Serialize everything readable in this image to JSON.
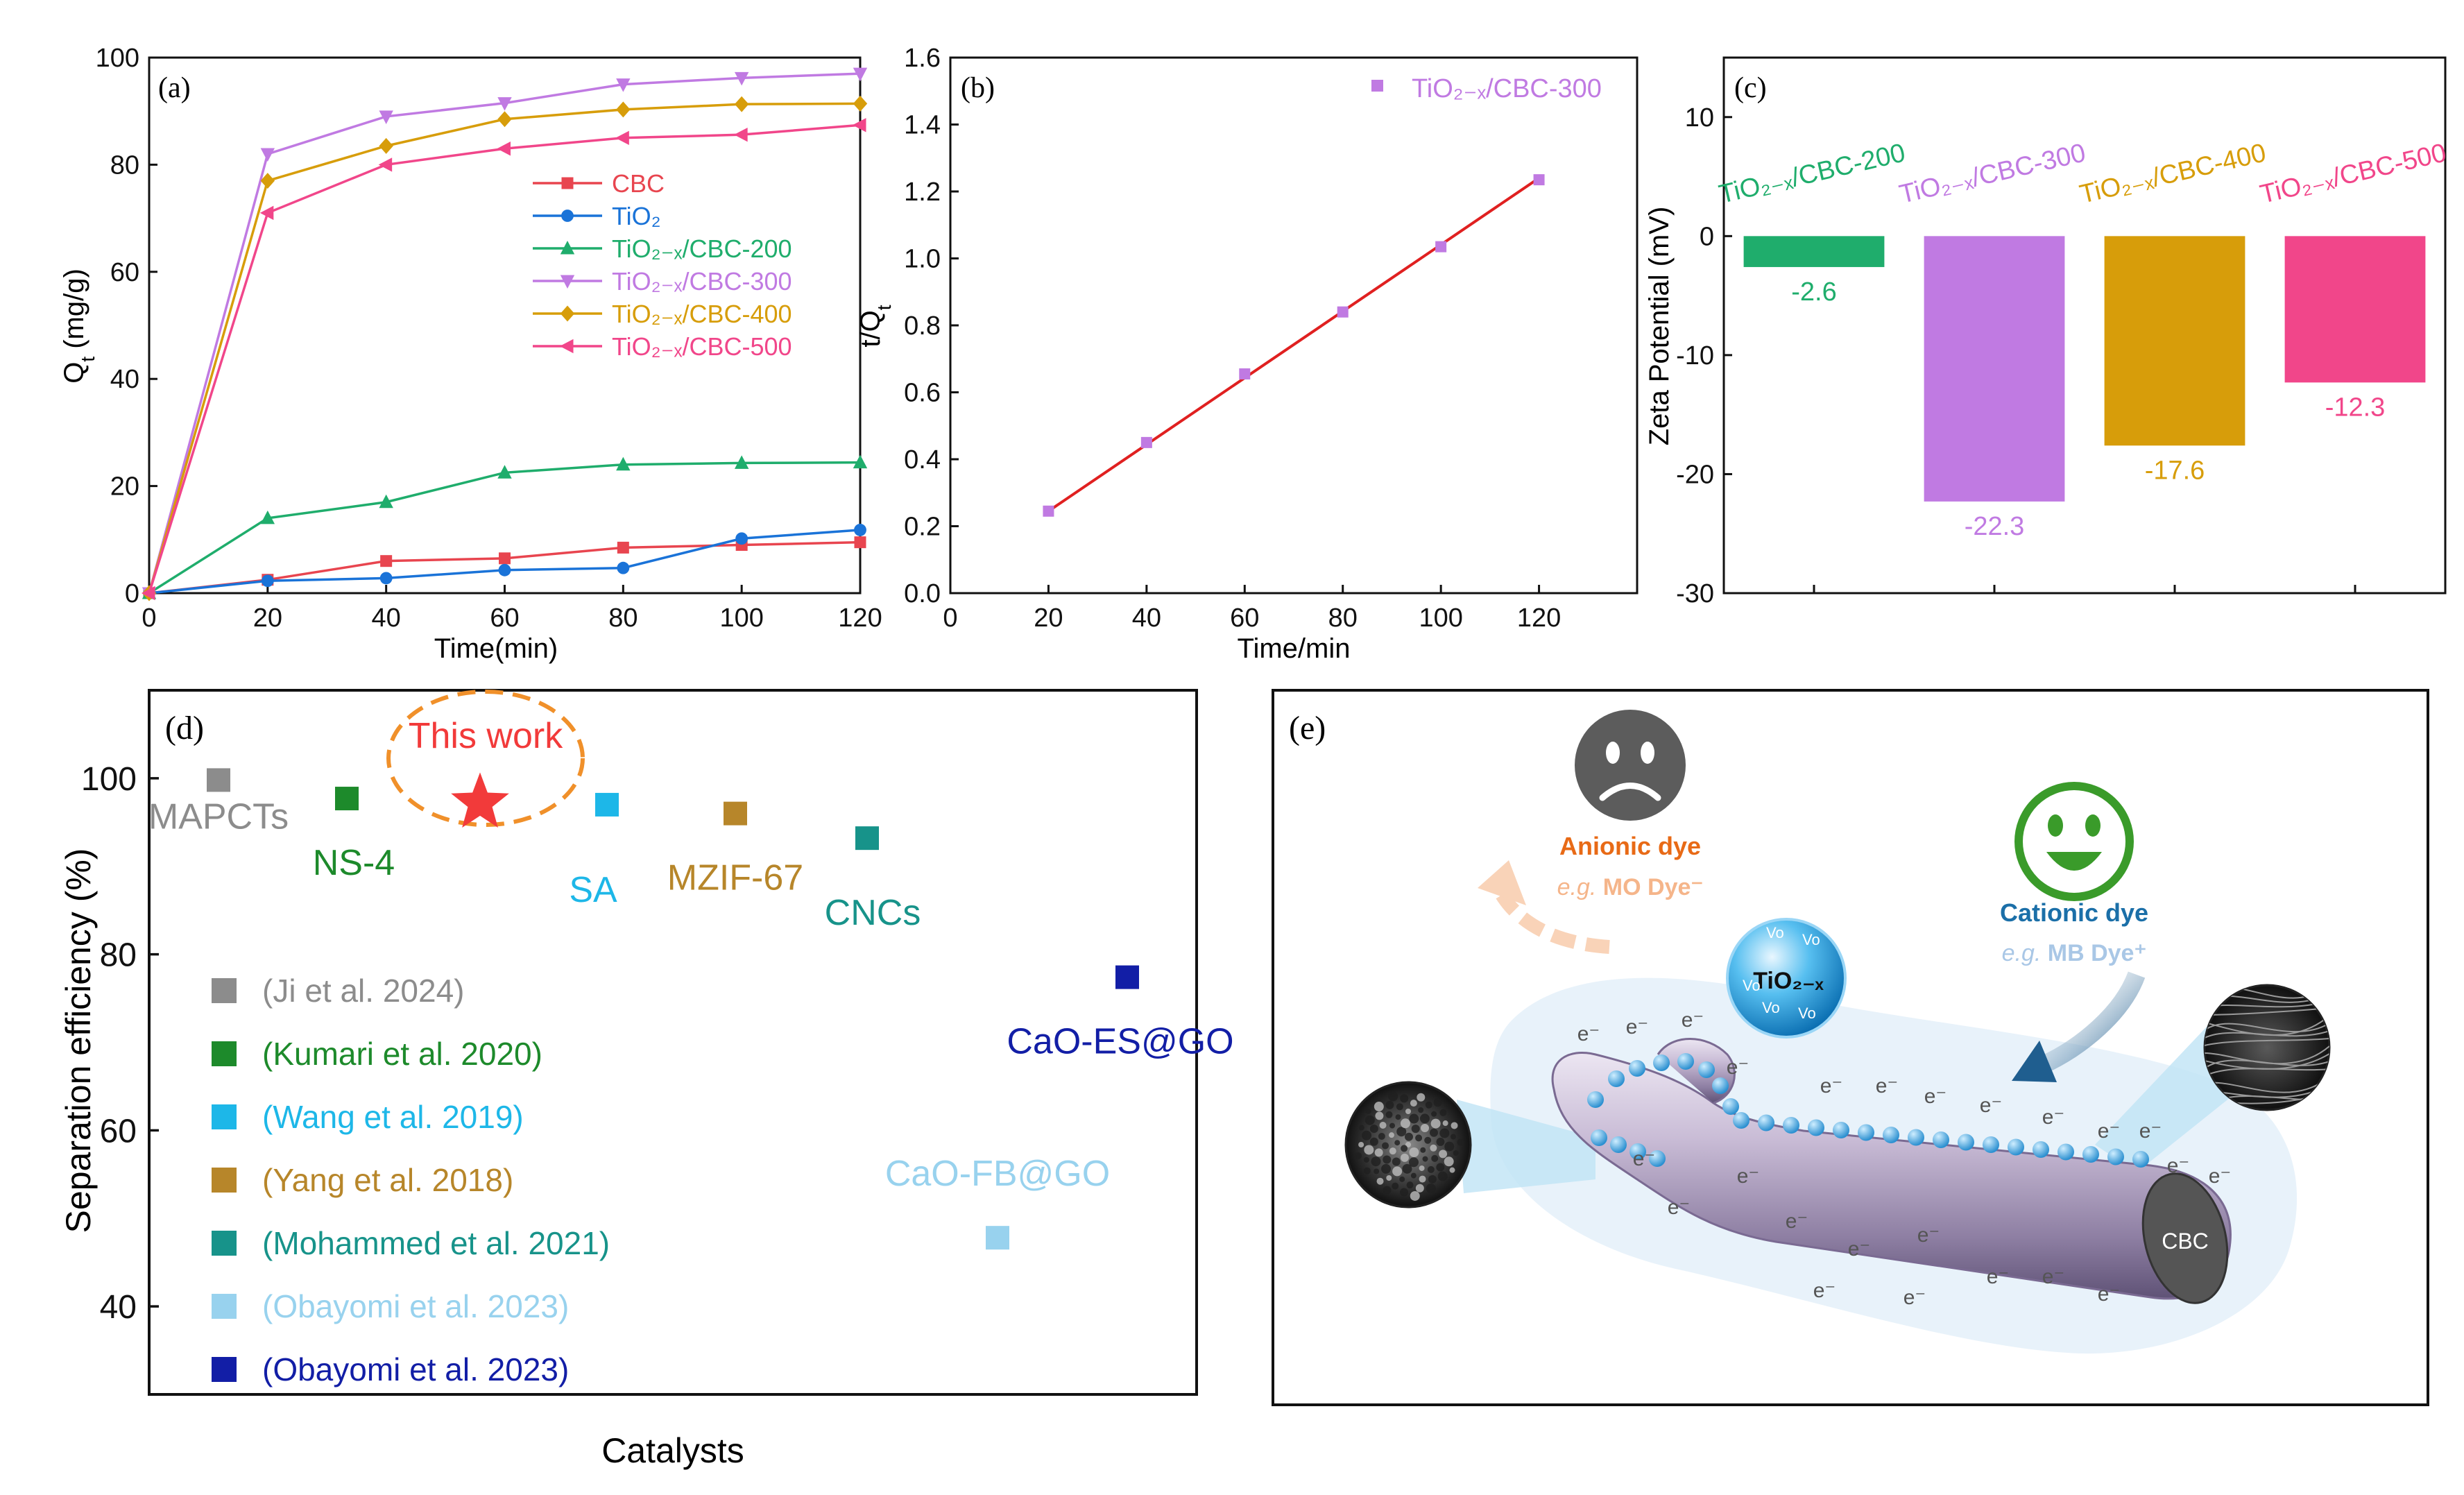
{
  "colors": {
    "CBC": "#e8454f",
    "TiO2": "#1a73d8",
    "C200": "#1fad6c",
    "C300": "#c07ae2",
    "C400": "#d79d0a",
    "C500": "#f1468a",
    "fit": "#e02020"
  },
  "chart_data": [
    {
      "id": "a",
      "type": "line",
      "panel_label": "(a)",
      "xlabel": "Time(min)",
      "ylabel_main": "Q",
      "ylabel_sub": "t",
      "ylabel_unit": " (mg/g)",
      "xlim": [
        0,
        120
      ],
      "ylim": [
        0,
        100
      ],
      "xticks": [
        0,
        20,
        40,
        60,
        80,
        100,
        120
      ],
      "yticks": [
        0,
        20,
        40,
        60,
        80,
        100
      ],
      "x": [
        0,
        20,
        40,
        60,
        80,
        100,
        120
      ],
      "series": [
        {
          "key": "CBC",
          "name": "CBC",
          "marker": "square",
          "values": [
            0,
            2.5,
            6,
            6.5,
            8.5,
            9,
            9.5
          ]
        },
        {
          "key": "TiO2",
          "name": "TiO₂",
          "marker": "circle",
          "values": [
            0,
            2.3,
            2.8,
            4.3,
            4.7,
            10.2,
            11.8
          ]
        },
        {
          "key": "C200",
          "name": "TiO₂₋ₓ/CBC-200",
          "marker": "triangle-up",
          "values": [
            0,
            14,
            17,
            22.5,
            24,
            24.3,
            24.4
          ]
        },
        {
          "key": "C300",
          "name": "TiO₂₋ₓ/CBC-300",
          "marker": "triangle-down",
          "values": [
            0,
            82,
            89,
            91.5,
            95,
            96.2,
            97
          ]
        },
        {
          "key": "C400",
          "name": "TiO₂₋ₓ/CBC-400",
          "marker": "diamond",
          "values": [
            0,
            77,
            83.5,
            88.5,
            90.3,
            91.3,
            91.4
          ]
        },
        {
          "key": "C500",
          "name": "TiO₂₋ₓ/CBC-500",
          "marker": "triangle-left",
          "values": [
            0,
            71,
            80,
            83,
            85,
            85.6,
            87.4
          ]
        }
      ]
    },
    {
      "id": "b",
      "type": "scatter",
      "panel_label": "(b)",
      "xlabel": "Time/min",
      "ylabel_main": "t/Q",
      "ylabel_sub": "t",
      "xlim": [
        0,
        140
      ],
      "ylim": [
        0,
        1.6
      ],
      "xticks": [
        0,
        20,
        40,
        60,
        80,
        100,
        120
      ],
      "yticks": [
        0.0,
        0.2,
        0.4,
        0.6,
        0.8,
        1.0,
        1.2,
        1.4,
        1.6
      ],
      "legend": "TiO₂₋ₓ/CBC-300",
      "x": [
        20,
        40,
        60,
        80,
        100,
        120
      ],
      "y": [
        0.245,
        0.45,
        0.655,
        0.84,
        1.035,
        1.235
      ],
      "fit_line": {
        "x": [
          20,
          120
        ],
        "y": [
          0.245,
          1.24
        ]
      }
    },
    {
      "id": "c",
      "type": "bar",
      "panel_label": "(c)",
      "ylabel": "Zeta Potential (mV)",
      "ylim": [
        -30,
        15
      ],
      "yticks": [
        10,
        0,
        -10,
        -20,
        -30
      ],
      "categories": [
        "TiO₂₋ₓ/CBC-200",
        "TiO₂₋ₓ/CBC-300",
        "TiO₂₋ₓ/CBC-400",
        "TiO₂₋ₓ/CBC-500"
      ],
      "keys": [
        "C200",
        "C300",
        "C400",
        "C500"
      ],
      "values": [
        -2.6,
        -22.3,
        -17.6,
        -12.3
      ],
      "value_labels": [
        "-2.6",
        "-22.3",
        "-17.6",
        "-12.3"
      ]
    },
    {
      "id": "d",
      "type": "scatter",
      "panel_label": "(d)",
      "xlabel": "Catalysts",
      "ylabel": "Separation efficiency (%)",
      "ylim": [
        30,
        110
      ],
      "yticks": [
        40,
        60,
        80,
        100
      ],
      "highlight_label": "This work",
      "points": [
        {
          "name": "MAPCTs",
          "value": 99.8,
          "color": "#8c8c8c"
        },
        {
          "name": "NS-4",
          "value": 97.7,
          "color": "#1d8a2b"
        },
        {
          "name": "This work",
          "value": 97.2,
          "color": "#f23a3a",
          "marker": "star"
        },
        {
          "name": "SA",
          "value": 97,
          "color": "#1db7e8"
        },
        {
          "name": "MZIF-67",
          "value": 96,
          "color": "#b7862a"
        },
        {
          "name": "CNCs",
          "value": 93.2,
          "color": "#17938a"
        },
        {
          "name": "CaO-ES@GO",
          "value": 77.4,
          "color": "#121ea6"
        },
        {
          "name": "CaO-FB@GO",
          "value": 47.8,
          "color": "#98d2ee"
        }
      ],
      "legend": [
        {
          "label": "(Ji et al. 2024)",
          "color": "#8c8c8c"
        },
        {
          "label": "(Kumari et al. 2020)",
          "color": "#1d8a2b"
        },
        {
          "label": "(Wang et al. 2019)",
          "color": "#1db7e8"
        },
        {
          "label": "(Yang et al. 2018)",
          "color": "#b7862a"
        },
        {
          "label": "(Mohammed et al. 2021)",
          "color": "#17938a"
        },
        {
          "label": "(Obayomi et al. 2023)",
          "color": "#98d2ee"
        },
        {
          "label": "(Obayomi et al. 2023)",
          "color": "#121ea6"
        }
      ]
    }
  ],
  "panel_e": {
    "label": "(e)",
    "anionic_title": "Anionic dye",
    "anionic_eg": "e.g.",
    "anionic_example": " MO Dye⁻",
    "cationic_title": "Cationic dye",
    "cationic_eg": "e.g.",
    "cationic_example": " MB Dye⁺",
    "tio2_label": "TiO₂₋ₓ",
    "vo_label": "Vo",
    "cbc_label": "CBC",
    "electron_label": "e⁻"
  }
}
